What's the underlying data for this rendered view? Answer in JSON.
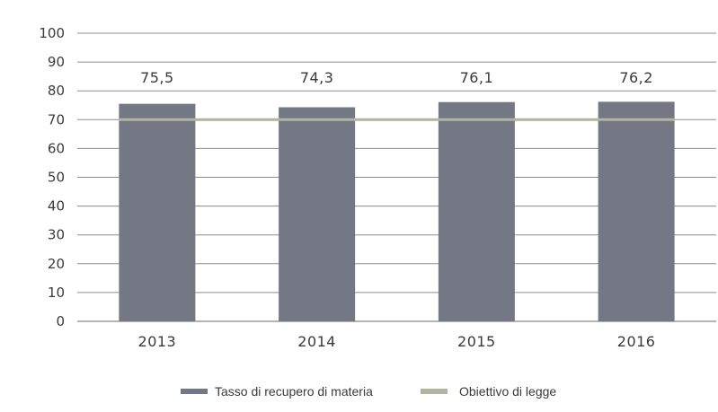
{
  "chart_data": {
    "type": "bar",
    "categories": [
      "2013",
      "2014",
      "2015",
      "2016"
    ],
    "series": [
      {
        "name": "Tasso di recupero di materia",
        "type": "bar",
        "values": [
          75.5,
          74.3,
          76.1,
          76.2
        ],
        "labels": [
          "75,5",
          "74,3",
          "76,1",
          "76,2"
        ],
        "color": "#737884"
      },
      {
        "name": "Obiettivo di legge",
        "type": "line",
        "values": [
          70,
          70,
          70,
          70
        ],
        "color": "#b2b3a1"
      }
    ],
    "title": "",
    "xlabel": "",
    "ylabel": "",
    "ylim": [
      0,
      100
    ],
    "yticks": [
      0,
      10,
      20,
      30,
      40,
      50,
      60,
      70,
      80,
      90,
      100
    ],
    "grid": true,
    "legend_position": "bottom"
  }
}
